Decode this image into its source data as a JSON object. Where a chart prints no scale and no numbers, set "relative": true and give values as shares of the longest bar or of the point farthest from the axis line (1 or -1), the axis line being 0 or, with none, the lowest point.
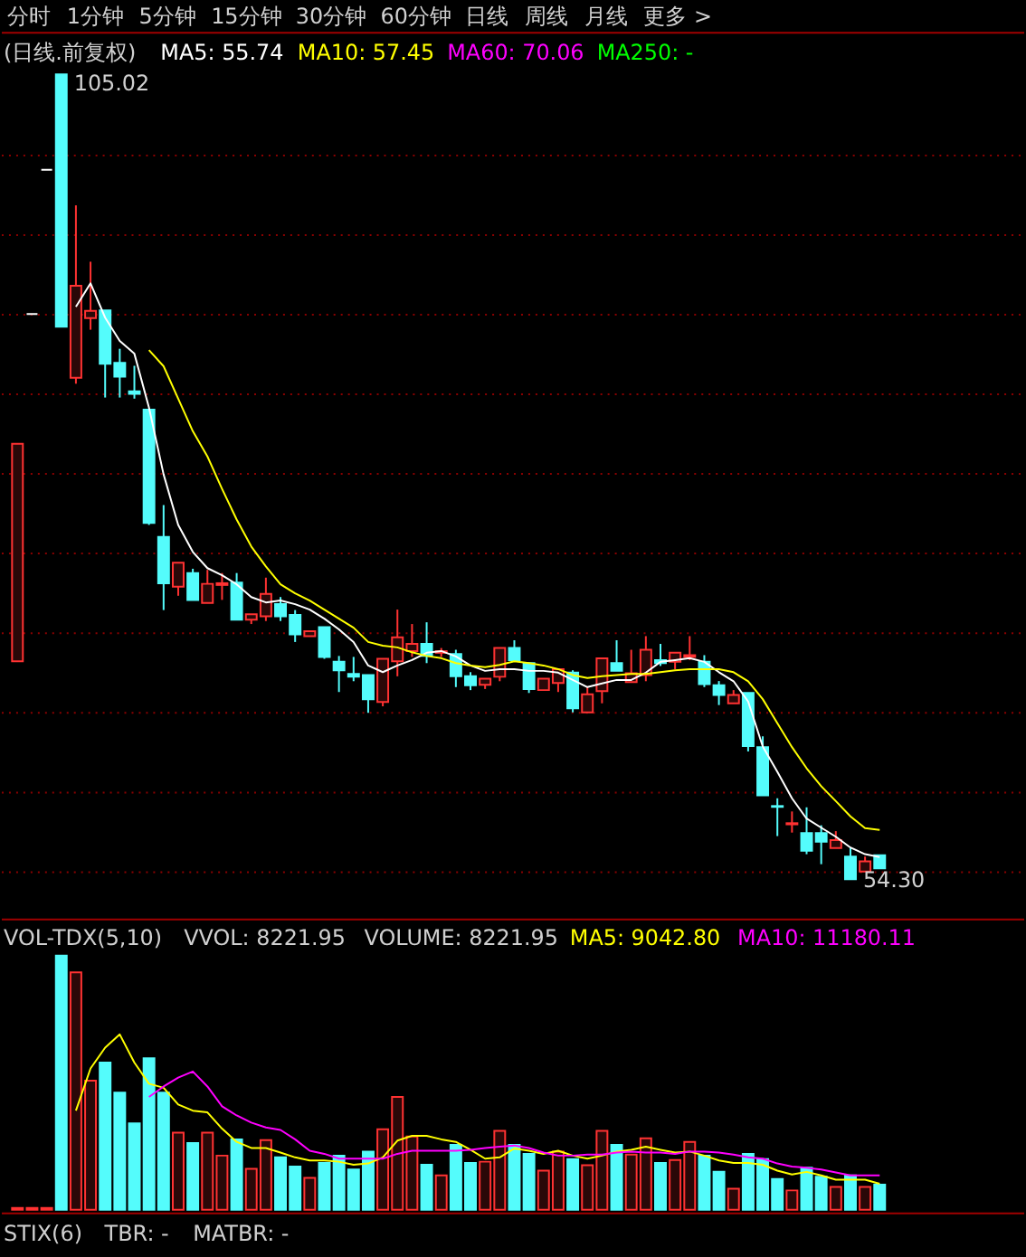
{
  "chart_data": [
    {
      "type": "candlestick",
      "title": "(日线.前复权)",
      "categories": [
        null,
        null,
        null,
        null,
        null,
        null,
        null,
        null,
        null,
        null,
        null,
        null,
        null,
        null,
        null,
        null,
        null,
        null,
        null,
        null,
        null,
        null,
        null,
        null,
        null,
        null,
        null,
        null,
        null,
        null,
        null,
        null,
        null,
        null,
        null,
        null,
        null,
        null,
        null,
        null,
        null,
        null,
        null,
        null,
        null,
        null,
        null,
        null,
        null,
        null,
        null,
        null,
        null,
        null,
        null,
        null,
        null,
        null,
        null,
        null
      ],
      "ohlc": [
        [
          68.06,
          81.76,
          68.06,
          81.76
        ],
        [
          89.93,
          89.93,
          89.93,
          89.93
        ],
        [
          99.01,
          99.01,
          99.01,
          99.01
        ],
        [
          105.02,
          105.02,
          89.13,
          89.13
        ],
        [
          85.92,
          96.77,
          85.54,
          91.71
        ],
        [
          89.67,
          93.22,
          88.94,
          90.12
        ],
        [
          90.15,
          90.15,
          84.67,
          86.79
        ],
        [
          86.86,
          87.74,
          84.67,
          85.99
        ],
        [
          85.06,
          86.67,
          84.6,
          84.9
        ],
        [
          83.91,
          83.91,
          76.65,
          76.77
        ],
        [
          75.89,
          77.9,
          71.29,
          72.97
        ],
        [
          72.76,
          74.27,
          72.19,
          74.27
        ],
        [
          73.62,
          73.89,
          71.92,
          71.92
        ],
        [
          71.74,
          73.82,
          71.74,
          72.94
        ],
        [
          72.87,
          73.62,
          71.93,
          72.98
        ],
        [
          73.02,
          73.62,
          70.68,
          70.68
        ],
        [
          70.68,
          71.02,
          70.41,
          71.02
        ],
        [
          70.9,
          73.33,
          70.6,
          72.31
        ],
        [
          71.66,
          72.11,
          70.6,
          70.9
        ],
        [
          70.98,
          71.29,
          69.28,
          69.76
        ],
        [
          69.65,
          69.96,
          69.65,
          69.96
        ],
        [
          70.22,
          70.22,
          68.22,
          68.34
        ],
        [
          68.03,
          68.4,
          66.13,
          67.5
        ],
        [
          67.27,
          68.34,
          66.81,
          67.09
        ],
        [
          67.2,
          67.2,
          64.82,
          65.68
        ],
        [
          65.5,
          68.22,
          65.23,
          68.22
        ],
        [
          68.06,
          71.32,
          67.12,
          69.58
        ],
        [
          68.71,
          70.41,
          68.34,
          69.16
        ],
        [
          69.16,
          70.52,
          67.95,
          68.4
        ],
        [
          68.6,
          68.9,
          68.34,
          68.7
        ],
        [
          68.52,
          68.79,
          66.44,
          67.12
        ],
        [
          67.12,
          67.38,
          66.25,
          66.55
        ],
        [
          66.59,
          66.97,
          66.32,
          66.97
        ],
        [
          67.09,
          68.9,
          66.81,
          68.9
        ],
        [
          68.9,
          69.39,
          68.14,
          68.14
        ],
        [
          67.95,
          67.95,
          66.07,
          66.32
        ],
        [
          66.25,
          66.97,
          66.25,
          66.97
        ],
        [
          66.7,
          67.57,
          66.13,
          67.57
        ],
        [
          67.35,
          67.5,
          64.85,
          65.11
        ],
        [
          64.85,
          66.44,
          64.85,
          65.99
        ],
        [
          66.18,
          68.25,
          65.42,
          68.25
        ],
        [
          67.95,
          69.39,
          67.46,
          67.46
        ],
        [
          66.75,
          68.79,
          66.75,
          67.31
        ],
        [
          67.2,
          69.65,
          66.81,
          68.79
        ],
        [
          68.14,
          69.16,
          67.77,
          67.95
        ],
        [
          68.03,
          68.6,
          67.57,
          68.6
        ],
        [
          68.34,
          69.65,
          68.14,
          68.45
        ],
        [
          68.03,
          68.45,
          66.44,
          66.63
        ],
        [
          66.55,
          66.82,
          65.31,
          65.95
        ],
        [
          65.42,
          66.25,
          65.42,
          65.95
        ],
        [
          66.07,
          66.07,
          62.39,
          62.73
        ],
        [
          62.66,
          63.34,
          59.63,
          59.63
        ],
        [
          58.95,
          59.44,
          57.06,
          58.9
        ],
        [
          57.8,
          58.61,
          57.28,
          57.87
        ],
        [
          57.25,
          58.87,
          55.92,
          56.14
        ],
        [
          57.25,
          57.74,
          55.29,
          56.71
        ],
        [
          56.31,
          57.37,
          56.31,
          56.8
        ],
        [
          55.77,
          56.31,
          54.3,
          54.34
        ],
        [
          54.83,
          55.77,
          54.83,
          55.47
        ],
        [
          55.85,
          55.85,
          55.02,
          55.02
        ]
      ],
      "colors": [
        "#ff3232",
        "#ffffff",
        "#ffffff",
        "#54fcfc",
        "#ff3232",
        "#ff3232",
        "#54fcfc",
        "#54fcfc",
        "#54fcfc",
        "#54fcfc",
        "#54fcfc",
        "#ff3232",
        "#54fcfc",
        "#ff3232",
        "#ff3232",
        "#54fcfc",
        "#ff3232",
        "#ff3232",
        "#54fcfc",
        "#54fcfc",
        "#ff3232",
        "#54fcfc",
        "#54fcfc",
        "#54fcfc",
        "#54fcfc",
        "#ff3232",
        "#ff3232",
        "#ff3232",
        "#54fcfc",
        "#ff3232",
        "#54fcfc",
        "#54fcfc",
        "#ff3232",
        "#ff3232",
        "#54fcfc",
        "#54fcfc",
        "#ff3232",
        "#ff3232",
        "#54fcfc",
        "#ff3232",
        "#ff3232",
        "#54fcfc",
        "#ff3232",
        "#ff3232",
        "#54fcfc",
        "#ff3232",
        "#ff3232",
        "#54fcfc",
        "#54fcfc",
        "#ff3232",
        "#54fcfc",
        "#54fcfc",
        "#54fcfc",
        "#ff3232",
        "#54fcfc",
        "#54fcfc",
        "#ff3232",
        "#54fcfc",
        "#ff3232",
        "#54fcfc"
      ],
      "series": [
        {
          "name": "MA5: 55.74",
          "type": "line",
          "color": "#ffffff",
          "values": [
            null,
            null,
            null,
            null,
            90.38,
            91.86,
            89.7,
            88.23,
            87.43,
            84.03,
            79.83,
            76.65,
            74.95,
            73.93,
            73.48,
            72.91,
            72.11,
            71.77,
            71.89,
            71.66,
            71.32,
            70.75,
            70.07,
            69.28,
            67.8,
            67.38,
            67.8,
            68.14,
            68.6,
            68.71,
            68.37,
            67.8,
            67.46,
            67.57,
            67.57,
            67.46,
            67.46,
            67.35,
            66.89,
            66.44,
            66.67,
            66.89,
            66.89,
            67.35,
            68.03,
            68.14,
            68.26,
            68.03,
            67.38,
            66.81,
            65.53,
            62.7,
            61.11,
            59.44,
            58.16,
            57.59,
            57.02,
            56.34,
            55.92,
            55.74
          ]
        },
        {
          "name": "MA10: 57.45",
          "type": "line",
          "color": "#ffff00",
          "values": [
            null,
            null,
            null,
            null,
            null,
            null,
            null,
            null,
            null,
            87.66,
            86.64,
            84.6,
            82.55,
            80.96,
            78.92,
            76.99,
            75.29,
            74.04,
            72.91,
            72.34,
            71.89,
            71.32,
            70.75,
            70.18,
            69.28,
            69.05,
            68.94,
            68.63,
            68.4,
            68.26,
            67.95,
            67.8,
            67.69,
            67.84,
            68.06,
            67.95,
            67.8,
            67.57,
            67.2,
            67.01,
            67.12,
            67.2,
            67.27,
            67.27,
            67.38,
            67.5,
            67.57,
            67.57,
            67.57,
            67.38,
            66.81,
            65.68,
            64.17,
            62.66,
            61.33,
            60.2,
            59.26,
            58.3,
            57.56,
            57.45
          ]
        },
        {
          "name": "MA60: 70.06",
          "type": "line",
          "color": "#ff00ff",
          "values": [
            null,
            null,
            null,
            null,
            null,
            null,
            null,
            null,
            null,
            null,
            null,
            null,
            null,
            null,
            null,
            null,
            null,
            null,
            null,
            null,
            null,
            null,
            null,
            null,
            null,
            null,
            null,
            null,
            null,
            null,
            null,
            null,
            null,
            null,
            null,
            null,
            null,
            null,
            null,
            null,
            null,
            null,
            null,
            null,
            null,
            null,
            null,
            null,
            null,
            null,
            null,
            null,
            null,
            null,
            null,
            null,
            null,
            null,
            null,
            null
          ]
        },
        {
          "name": "MA250: -",
          "type": "line",
          "color": "#00ff00",
          "values": [
            null,
            null,
            null,
            null,
            null,
            null,
            null,
            null,
            null,
            null,
            null,
            null,
            null,
            null,
            null,
            null,
            null,
            null,
            null,
            null,
            null,
            null,
            null,
            null,
            null,
            null,
            null,
            null,
            null,
            null,
            null,
            null,
            null,
            null,
            null,
            null,
            null,
            null,
            null,
            null,
            null,
            null,
            null,
            null,
            null,
            null,
            null,
            null,
            null,
            null,
            null,
            null,
            null,
            null,
            null,
            null,
            null,
            null,
            null,
            null
          ]
        }
      ],
      "yticks": [
        {
          "value": 99.91,
          "label": null
        },
        {
          "value": 94.9,
          "label": null
        },
        {
          "value": 89.89,
          "label": null
        },
        {
          "value": 84.88,
          "label": null
        },
        {
          "value": 79.86,
          "label": null
        },
        {
          "value": 74.85,
          "label": null
        },
        {
          "value": 69.83,
          "label": null
        },
        {
          "value": 64.82,
          "label": null
        },
        {
          "value": 59.8,
          "label": null
        },
        {
          "value": 54.79,
          "label": null
        }
      ],
      "grid": "y",
      "annotations": [
        "分时",
        "1分钟",
        "5分钟",
        "15分钟",
        "30分钟",
        "60分钟",
        "日线",
        "周线",
        "月线",
        "更多 >",
        "105.02",
        "54.30"
      ]
    },
    {
      "type": "bar",
      "title": "VOL-TDX(5,10)",
      "relative": true,
      "categories": [
        null,
        null,
        null,
        null,
        null,
        null,
        null,
        null,
        null,
        null,
        null,
        null,
        null,
        null,
        null,
        null,
        null,
        null,
        null,
        null,
        null,
        null,
        null,
        null,
        null,
        null,
        null,
        null,
        null,
        null,
        null,
        null,
        null,
        null,
        null,
        null,
        null,
        null,
        null,
        null,
        null,
        null,
        null,
        null,
        null,
        null,
        null,
        null,
        null,
        null,
        null,
        null,
        null,
        null,
        null,
        null,
        null,
        null,
        null,
        null
      ],
      "series": [
        {
          "type": "bar",
          "values": [
            0.007,
            0.007,
            0.007,
            1.0,
            0.934,
            0.508,
            0.579,
            0.461,
            0.34,
            0.596,
            0.461,
            0.303,
            0.262,
            0.303,
            0.213,
            0.277,
            0.161,
            0.274,
            0.206,
            0.17,
            0.125,
            0.184,
            0.213,
            0.158,
            0.229,
            0.317,
            0.444,
            0.288,
            0.177,
            0.135,
            0.255,
            0.184,
            0.189,
            0.31,
            0.255,
            0.22,
            0.154,
            0.229,
            0.199,
            0.175,
            0.31,
            0.255,
            0.217,
            0.281,
            0.184,
            0.196,
            0.267,
            0.213,
            0.149,
            0.083,
            0.22,
            0.199,
            0.121,
            0.076,
            0.165,
            0.13,
            0.09,
            0.135,
            0.09,
            0.099
          ],
          "colors": [
            "#ff3232",
            "#ff3232",
            "#ff3232",
            "#54fcfc",
            "#ff3232",
            "#ff3232",
            "#54fcfc",
            "#54fcfc",
            "#54fcfc",
            "#54fcfc",
            "#54fcfc",
            "#ff3232",
            "#54fcfc",
            "#ff3232",
            "#ff3232",
            "#54fcfc",
            "#ff3232",
            "#ff3232",
            "#54fcfc",
            "#54fcfc",
            "#ff3232",
            "#54fcfc",
            "#54fcfc",
            "#54fcfc",
            "#54fcfc",
            "#ff3232",
            "#ff3232",
            "#ff3232",
            "#54fcfc",
            "#ff3232",
            "#54fcfc",
            "#54fcfc",
            "#ff3232",
            "#ff3232",
            "#54fcfc",
            "#54fcfc",
            "#ff3232",
            "#ff3232",
            "#54fcfc",
            "#ff3232",
            "#ff3232",
            "#54fcfc",
            "#ff3232",
            "#ff3232",
            "#54fcfc",
            "#ff3232",
            "#ff3232",
            "#54fcfc",
            "#54fcfc",
            "#ff3232",
            "#54fcfc",
            "#54fcfc",
            "#54fcfc",
            "#ff3232",
            "#54fcfc",
            "#54fcfc",
            "#ff3232",
            "#54fcfc",
            "#ff3232",
            "#54fcfc"
          ]
        },
        {
          "name": "MA5: 9042.80",
          "type": "line",
          "color": "#ffff00",
          "values": [
            null,
            null,
            null,
            null,
            0.39,
            0.556,
            0.638,
            0.69,
            0.579,
            0.496,
            0.48,
            0.414,
            0.39,
            0.383,
            0.319,
            0.267,
            0.243,
            0.243,
            0.225,
            0.206,
            0.194,
            0.194,
            0.189,
            0.177,
            0.182,
            0.206,
            0.272,
            0.291,
            0.291,
            0.277,
            0.267,
            0.236,
            0.201,
            0.206,
            0.241,
            0.232,
            0.22,
            0.232,
            0.213,
            0.201,
            0.213,
            0.229,
            0.236,
            0.248,
            0.236,
            0.225,
            0.229,
            0.213,
            0.194,
            0.184,
            0.184,
            0.177,
            0.154,
            0.139,
            0.149,
            0.135,
            0.118,
            0.118,
            0.118,
            0.102
          ]
        },
        {
          "name": "MA10: 11180.11",
          "type": "line",
          "color": "#ff00ff",
          "values": [
            null,
            null,
            null,
            null,
            null,
            null,
            null,
            null,
            null,
            0.444,
            0.485,
            0.52,
            0.544,
            0.485,
            0.407,
            0.371,
            0.343,
            0.324,
            0.314,
            0.277,
            0.232,
            0.22,
            0.201,
            0.201,
            0.201,
            0.201,
            0.22,
            0.232,
            0.232,
            0.232,
            0.232,
            0.236,
            0.243,
            0.248,
            0.253,
            0.243,
            0.225,
            0.213,
            0.213,
            0.217,
            0.217,
            0.225,
            0.229,
            0.225,
            0.225,
            0.22,
            0.229,
            0.229,
            0.225,
            0.217,
            0.206,
            0.201,
            0.182,
            0.17,
            0.165,
            0.158,
            0.147,
            0.135,
            0.135,
            0.135
          ]
        }
      ],
      "annotations": [
        "VVOL: 8221.95",
        "VOLUME: 8221.95"
      ]
    },
    {
      "type": "other",
      "title": "STIX(6)",
      "annotations": [
        "TBR: -",
        "MATBR: -"
      ]
    }
  ]
}
